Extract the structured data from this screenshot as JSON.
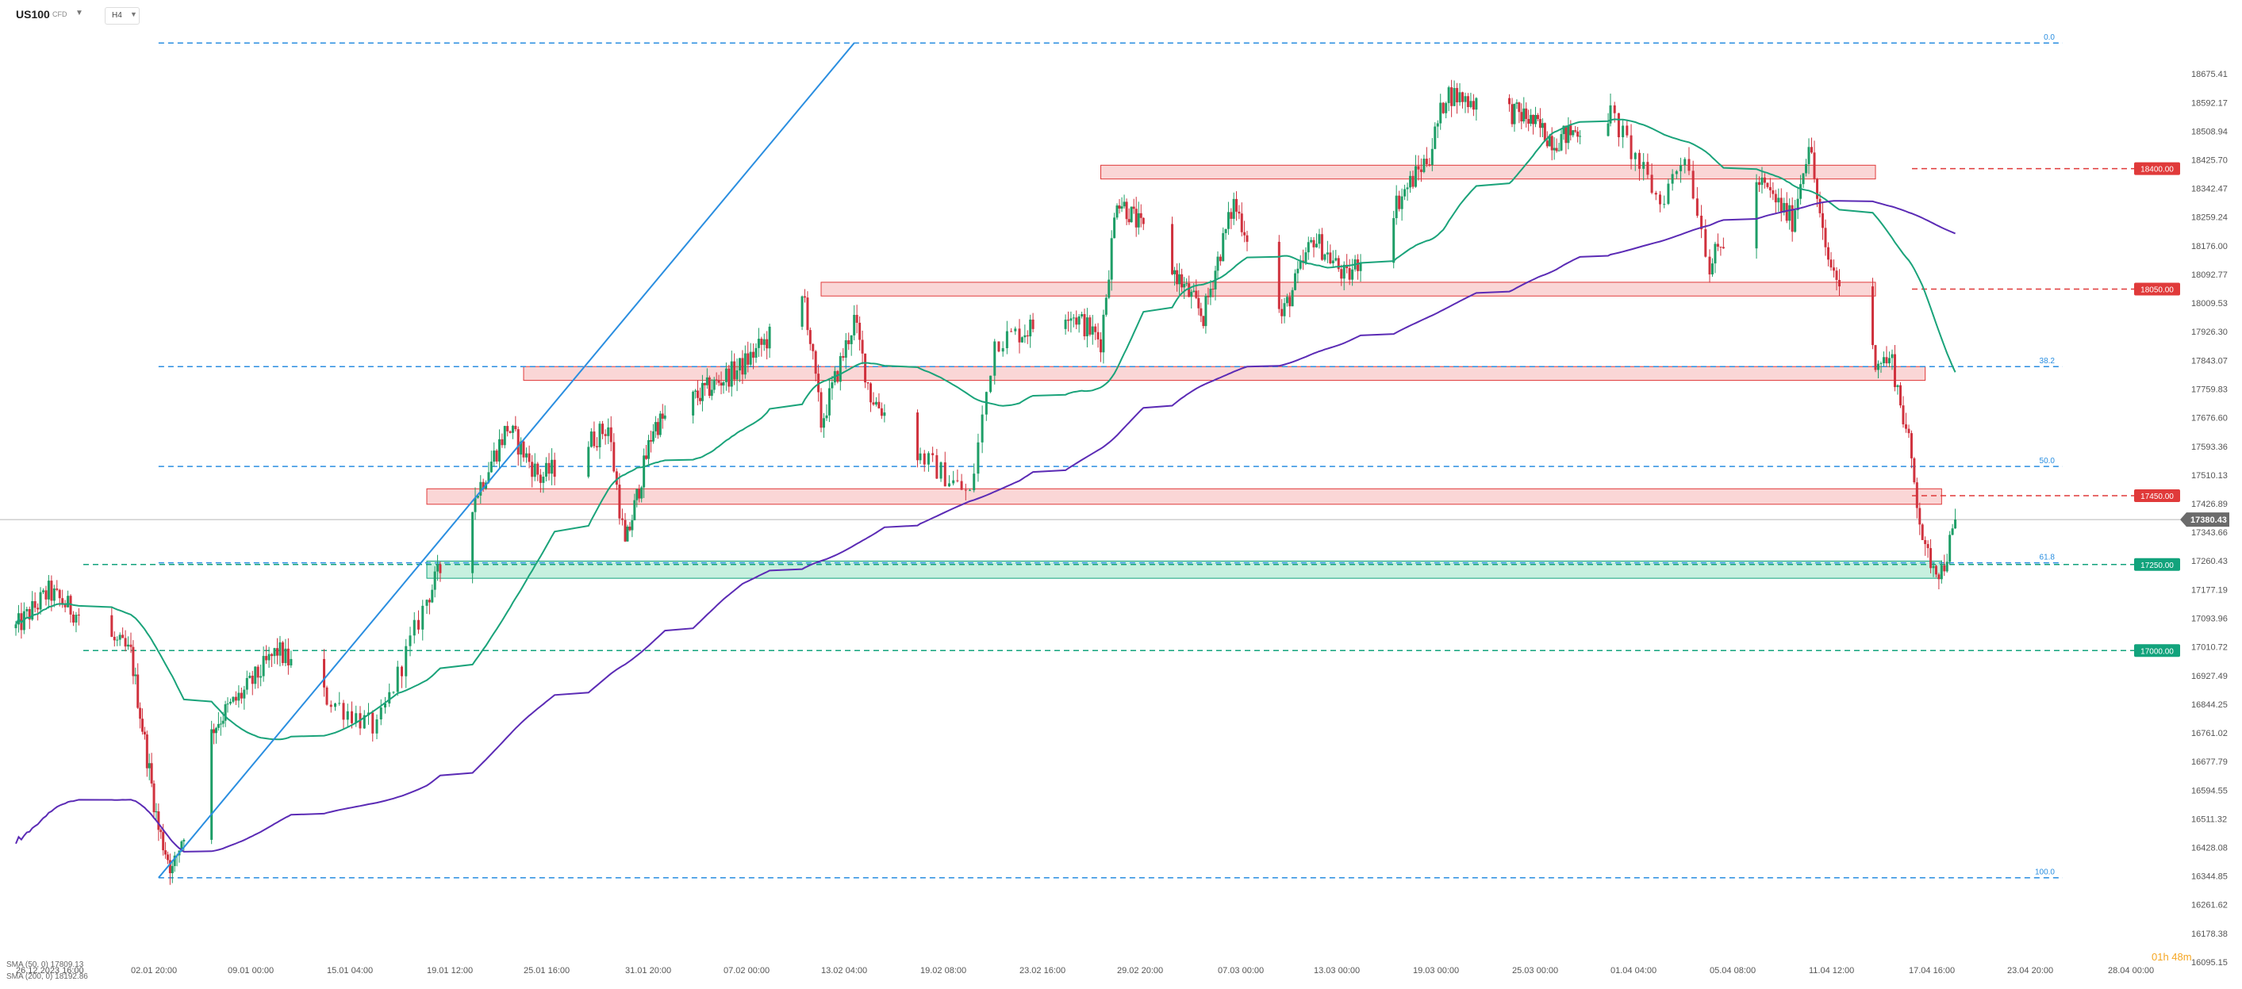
{
  "header": {
    "symbol": "US100",
    "symbol_sub": "CFD",
    "dropdown_glyph": "▼",
    "timeframe": "H4"
  },
  "legend": [
    {
      "text": "SMA (50, 0)  17809.13",
      "color": "#1aa37a"
    },
    {
      "text": "SMA (200, 0)  18192.86",
      "color": "#5b2bb5"
    }
  ],
  "countdown": "01h 48m",
  "colors": {
    "bull": "#1e9e67",
    "bear": "#d0323e",
    "sma50": "#1aa37a",
    "sma200": "#5b2bb5",
    "fib": "#2a8ee0",
    "resistance": "#e03a3a",
    "support": "#12a37c",
    "current": "#6b6b6b"
  },
  "chart_data": {
    "type": "candlestick",
    "symbol": "US100",
    "timeframe": "H4",
    "ylim": [
      16095.15,
      18758.64
    ],
    "y_ticks": [
      "18675.41",
      "18592.17",
      "18508.94",
      "18425.70",
      "18342.47",
      "18259.24",
      "18176.00",
      "18092.77",
      "18009.53",
      "17926.30",
      "17843.07",
      "17759.83",
      "17676.60",
      "17593.36",
      "17510.13",
      "17426.89",
      "17343.66",
      "17260.43",
      "17177.19",
      "17093.96",
      "17010.72",
      "16927.49",
      "16844.25",
      "16761.02",
      "16677.79",
      "16594.55",
      "16511.32",
      "16428.08",
      "16344.85",
      "16261.62",
      "16178.38",
      "16095.15"
    ],
    "x_ticks": [
      "26.12.2023  16:00",
      "02.01  20:00",
      "09.01  00:00",
      "15.01  04:00",
      "19.01  12:00",
      "25.01  16:00",
      "31.01  20:00",
      "07.02  00:00",
      "13.02  04:00",
      "19.02  08:00",
      "23.02  16:00",
      "29.02  20:00",
      "07.03  00:00",
      "13.03  00:00",
      "19.03  00:00",
      "25.03  00:00",
      "01.04  04:00",
      "05.04  08:00",
      "11.04  12:00",
      "17.04  16:00",
      "23.04  20:00",
      "28.04  00:00"
    ],
    "current_price": "17380.43",
    "fib_levels": [
      {
        "label": "0.0",
        "value": 18765
      },
      {
        "label": "38.2",
        "value": 17825
      },
      {
        "label": "50.0",
        "value": 17535
      },
      {
        "label": "61.8",
        "value": 17255
      },
      {
        "label": "100.0",
        "value": 16340
      }
    ],
    "price_lines": [
      {
        "label": "18400.00",
        "value": 18400,
        "kind": "resistance"
      },
      {
        "label": "18050.00",
        "value": 18050,
        "kind": "resistance"
      },
      {
        "label": "17450.00",
        "value": 17450,
        "kind": "resistance"
      },
      {
        "label": "17250.00",
        "value": 17250,
        "kind": "support"
      },
      {
        "label": "17000.00",
        "value": 17000,
        "kind": "support"
      }
    ],
    "zones": [
      {
        "kind": "resistance",
        "lo": 18370,
        "hi": 18410,
        "x_from": "2024-02-28",
        "x_to": "2024-04-15"
      },
      {
        "kind": "resistance",
        "lo": 18030,
        "hi": 18070,
        "x_from": "2024-02-13",
        "x_to": "2024-04-15"
      },
      {
        "kind": "resistance",
        "lo": 17785,
        "hi": 17825,
        "x_from": "2024-01-25",
        "x_to": "2024-04-18"
      },
      {
        "kind": "resistance",
        "lo": 17425,
        "hi": 17470,
        "x_from": "2024-01-19",
        "x_to": "2024-04-19"
      },
      {
        "kind": "support",
        "lo": 17210,
        "hi": 17260,
        "x_from": "2024-01-19",
        "x_to": "2024-04-19"
      }
    ],
    "trendline": {
      "from": [
        "2024-01-04",
        16340
      ],
      "to": [
        "2024-02-15",
        18765
      ]
    },
    "anchors": [
      [
        "2023-12-26",
        17065
      ],
      [
        "2023-12-28",
        17170
      ],
      [
        "2024-01-02",
        16990
      ],
      [
        "2024-01-04",
        16480
      ],
      [
        "2024-01-05",
        16360
      ],
      [
        "2024-01-08",
        16780
      ],
      [
        "2024-01-10",
        16880
      ],
      [
        "2024-01-12",
        17000
      ],
      [
        "2024-01-17",
        16770
      ],
      [
        "2024-01-19",
        17150
      ],
      [
        "2024-01-22",
        17450
      ],
      [
        "2024-01-24",
        17650
      ],
      [
        "2024-01-26",
        17500
      ],
      [
        "2024-01-30",
        17650
      ],
      [
        "2024-01-31",
        17300
      ],
      [
        "2024-02-02",
        17650
      ],
      [
        "2024-02-08",
        17820
      ],
      [
        "2024-02-12",
        18020
      ],
      [
        "2024-02-13",
        17660
      ],
      [
        "2024-02-15",
        17960
      ],
      [
        "2024-02-16",
        17740
      ],
      [
        "2024-02-21",
        17450
      ],
      [
        "2024-02-22",
        17900
      ],
      [
        "2024-02-26",
        17990
      ],
      [
        "2024-02-28",
        17900
      ],
      [
        "2024-02-29",
        18320
      ],
      [
        "2024-03-04",
        18100
      ],
      [
        "2024-03-06",
        17970
      ],
      [
        "2024-03-08",
        18300
      ],
      [
        "2024-03-11",
        17970
      ],
      [
        "2024-03-13",
        18200
      ],
      [
        "2024-03-15",
        18080
      ],
      [
        "2024-03-18",
        18300
      ],
      [
        "2024-03-20",
        18440
      ],
      [
        "2024-03-21",
        18620
      ],
      [
        "2024-03-26",
        18550
      ],
      [
        "2024-03-28",
        18480
      ],
      [
        "2024-04-01",
        18560
      ],
      [
        "2024-04-03",
        18300
      ],
      [
        "2024-04-04",
        18450
      ],
      [
        "2024-04-05",
        18120
      ],
      [
        "2024-04-08",
        18360
      ],
      [
        "2024-04-10",
        18250
      ],
      [
        "2024-04-11",
        18480
      ],
      [
        "2024-04-12",
        18150
      ],
      [
        "2024-04-15",
        17850
      ],
      [
        "2024-04-16",
        17840
      ],
      [
        "2024-04-17",
        17600
      ],
      [
        "2024-04-18",
        17280
      ],
      [
        "2024-04-19",
        17230
      ],
      [
        "2024-04-20",
        17390
      ]
    ],
    "axis_dates": [
      "2023-12-26",
      "2024-01-02",
      "2024-01-09",
      "2024-01-15",
      "2024-01-19",
      "2024-01-25",
      "2024-01-31",
      "2024-02-07",
      "2024-02-13",
      "2024-02-19",
      "2024-02-23",
      "2024-02-29",
      "2024-03-07",
      "2024-03-13",
      "2024-03-19",
      "2024-03-25",
      "2024-04-01",
      "2024-04-05",
      "2024-04-11",
      "2024-04-17",
      "2024-04-23",
      "2024-04-28"
    ],
    "last_candle_date": "2024-04-20",
    "sma": [
      {
        "name": "SMA (50, 0)",
        "last": 17809.13
      },
      {
        "name": "SMA (200, 0)",
        "last": 18192.86
      }
    ]
  }
}
